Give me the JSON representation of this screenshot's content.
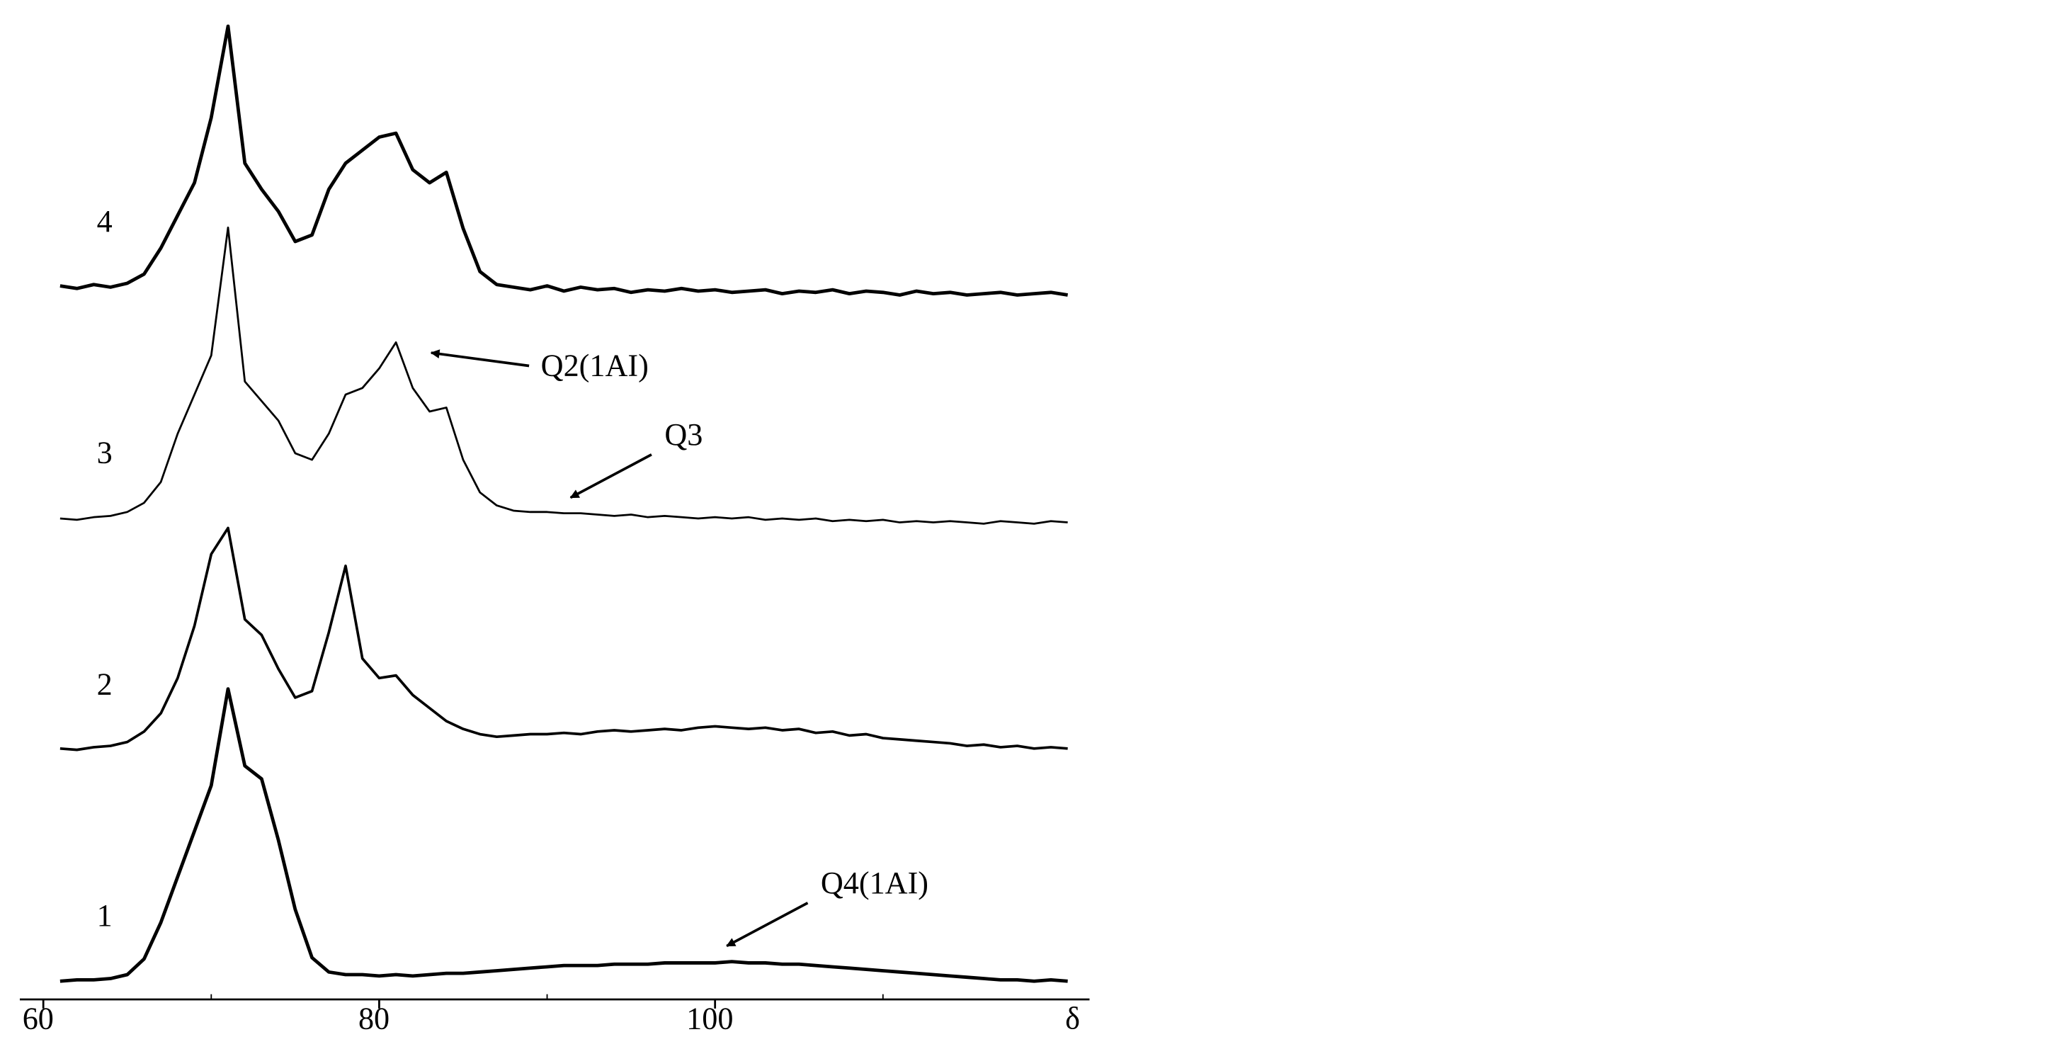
{
  "chart_data": {
    "type": "stacked-spectra",
    "xlabel": "δ",
    "xlim": [
      58.6,
      122.3
    ],
    "xticks": [
      60,
      80,
      100
    ],
    "minor_xticks": [
      70,
      90,
      110
    ],
    "x": [
      61,
      62,
      63,
      64,
      65,
      66,
      67,
      68,
      69,
      70,
      71,
      72,
      73,
      74,
      75,
      76,
      77,
      78,
      79,
      80,
      81,
      82,
      83,
      84,
      85,
      86,
      87,
      88,
      89,
      90,
      91,
      92,
      93,
      94,
      95,
      96,
      97,
      98,
      99,
      100,
      101,
      102,
      103,
      104,
      105,
      106,
      107,
      108,
      109,
      110,
      111,
      112,
      113,
      114,
      115,
      116,
      117,
      118,
      119,
      120,
      121
    ],
    "series": [
      {
        "name": "1",
        "color": "#000000",
        "values": [
          0,
          1,
          1,
          2,
          5,
          17,
          45,
          80,
          115,
          150,
          224,
          165,
          155,
          108,
          55,
          18,
          7,
          5,
          5,
          4,
          5,
          4,
          5,
          6,
          6,
          7,
          8,
          9,
          10,
          11,
          12,
          12,
          12,
          13,
          13,
          13,
          14,
          14,
          14,
          14,
          15,
          14,
          14,
          13,
          13,
          12,
          11,
          10,
          9,
          8,
          7,
          6,
          5,
          4,
          3,
          2,
          1,
          1,
          0,
          1,
          0
        ],
        "annotations": [
          {
            "text": "Q4(1AI)",
            "x": 100.7
          }
        ]
      },
      {
        "name": "2",
        "color": "#000000",
        "values": [
          1,
          0,
          2,
          3,
          6,
          14,
          28,
          55,
          95,
          150,
          170,
          100,
          88,
          62,
          40,
          45,
          90,
          141,
          70,
          55,
          57,
          42,
          32,
          22,
          16,
          12,
          10,
          11,
          12,
          12,
          13,
          12,
          14,
          15,
          14,
          15,
          16,
          15,
          17,
          18,
          17,
          16,
          17,
          15,
          16,
          13,
          14,
          11,
          12,
          9,
          8,
          7,
          6,
          5,
          3,
          4,
          2,
          3,
          1,
          2,
          1
        ]
      },
      {
        "name": "3",
        "color": "#000000",
        "values": [
          0,
          -1,
          1,
          2,
          5,
          12,
          28,
          65,
          95,
          125,
          223,
          105,
          90,
          75,
          50,
          45,
          65,
          95,
          100,
          115,
          135,
          100,
          82,
          85,
          45,
          20,
          10,
          6,
          5,
          5,
          4,
          4,
          3,
          2,
          3,
          1,
          2,
          1,
          0,
          1,
          0,
          1,
          -1,
          0,
          -1,
          0,
          -2,
          -1,
          -2,
          -1,
          -3,
          -2,
          -3,
          -2,
          -3,
          -4,
          -2,
          -3,
          -4,
          -2,
          -3
        ],
        "annotations": [
          {
            "text": "Q2(1AI)",
            "x": 83.1
          },
          {
            "text": "Q3",
            "x": 91.4
          }
        ]
      },
      {
        "name": "4",
        "color": "#000000",
        "values": [
          1,
          -1,
          2,
          0,
          3,
          10,
          30,
          55,
          80,
          130,
          200,
          95,
          75,
          58,
          35,
          40,
          75,
          95,
          105,
          115,
          118,
          90,
          80,
          88,
          45,
          12,
          2,
          0,
          -2,
          1,
          -3,
          0,
          -2,
          -1,
          -4,
          -2,
          -3,
          -1,
          -3,
          -2,
          -4,
          -3,
          -2,
          -5,
          -3,
          -4,
          -2,
          -5,
          -3,
          -4,
          -6,
          -3,
          -5,
          -4,
          -6,
          -5,
          -4,
          -6,
          -5,
          -4,
          -6
        ]
      }
    ]
  }
}
